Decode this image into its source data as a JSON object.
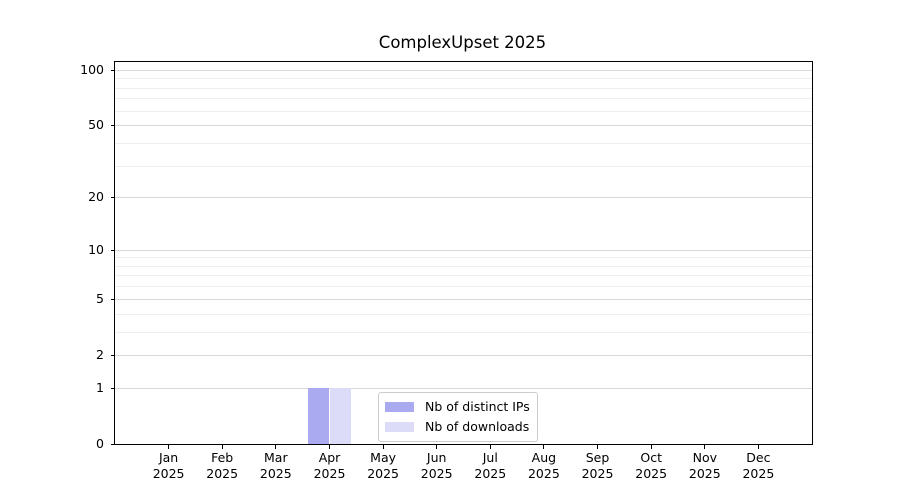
{
  "chart_data": {
    "type": "bar",
    "title": "ComplexUpset 2025",
    "xlabel": "",
    "ylabel": "",
    "categories": [
      "Jan 2025",
      "Feb 2025",
      "Mar 2025",
      "Apr 2025",
      "May 2025",
      "Jun 2025",
      "Jul 2025",
      "Aug 2025",
      "Sep 2025",
      "Oct 2025",
      "Nov 2025",
      "Dec 2025"
    ],
    "series": [
      {
        "name": "Nb of distinct IPs",
        "color": "#aaaaf0",
        "values": [
          0,
          0,
          0,
          1,
          0,
          0,
          0,
          0,
          0,
          0,
          0,
          0
        ]
      },
      {
        "name": "Nb of downloads",
        "color": "#dcdcf8",
        "values": [
          0,
          0,
          0,
          1,
          0,
          0,
          0,
          0,
          0,
          0,
          0,
          0
        ]
      }
    ],
    "yscale": "log1p",
    "ylim": [
      0,
      110
    ],
    "yticks_major": [
      0,
      1,
      2,
      5,
      10,
      20,
      50,
      100
    ],
    "yticks_minor": [
      3,
      4,
      6,
      7,
      8,
      9,
      30,
      40,
      60,
      70,
      80,
      90
    ],
    "grid": {
      "major_color": "#d9d9d9",
      "minor_color": "#efefef",
      "axis": "y"
    },
    "legend": {
      "position": "lower center",
      "border_color": "#cccccc"
    },
    "spine_color": "#000000"
  }
}
